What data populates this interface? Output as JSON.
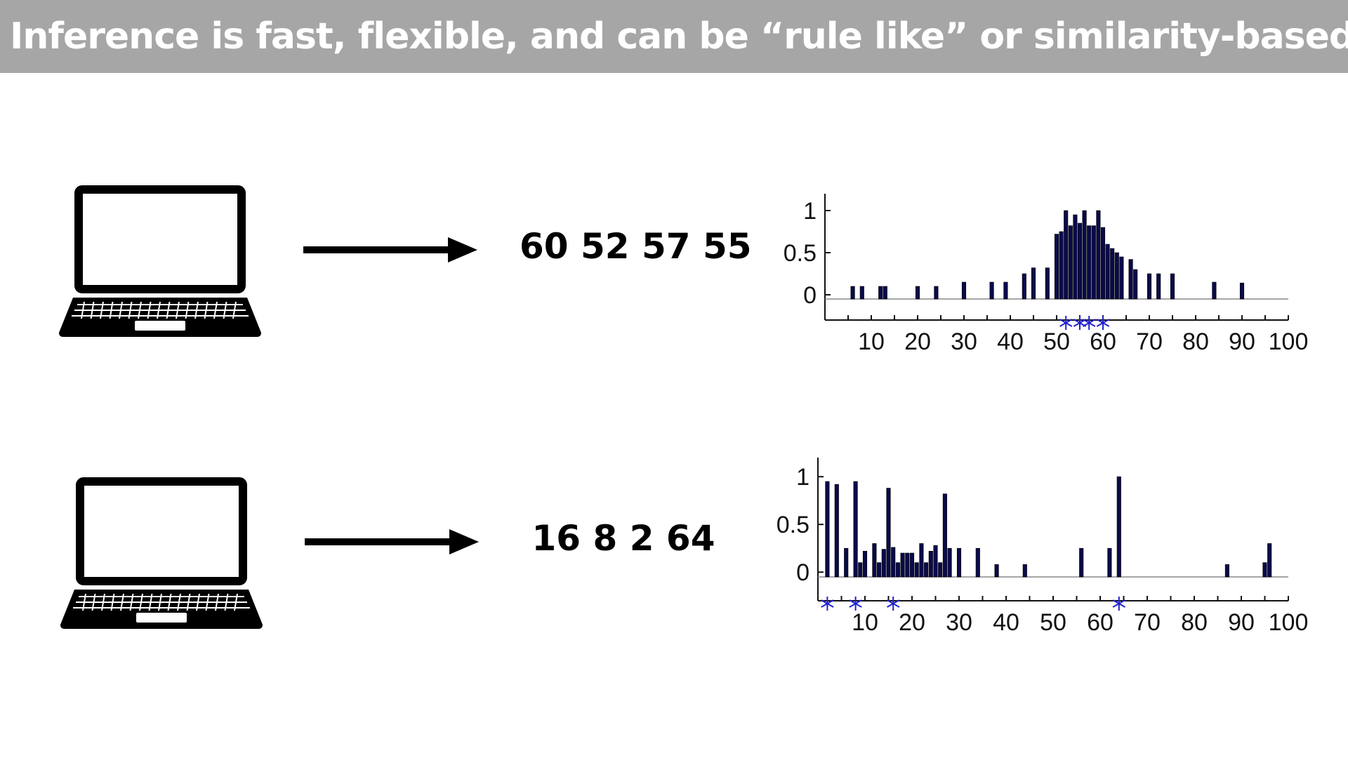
{
  "header": {
    "title": "Inference is fast, flexible, and can be “rule like” or similarity-based"
  },
  "rows": [
    {
      "sequence": "60 52 57 55"
    },
    {
      "sequence": "16 8 2 64"
    }
  ],
  "colors": {
    "title_bar": "#a6a6a6",
    "bar": "#0a0a4a",
    "star": "#2020d0"
  },
  "icons": [
    "laptop-icon",
    "arrow-right-icon"
  ],
  "chart_data": [
    {
      "type": "bar",
      "xlim": [
        0,
        100
      ],
      "ylim": [
        -0.3,
        1.2
      ],
      "xticks": [
        10,
        20,
        30,
        40,
        50,
        60,
        70,
        80,
        90,
        100
      ],
      "yticks": [
        0,
        0.5,
        1
      ],
      "xtick_labels": [
        "10",
        "20",
        "30",
        "40",
        "50",
        "60",
        "70",
        "80",
        "90",
        "100"
      ],
      "ytick_labels": [
        "0",
        "0.5",
        "1"
      ],
      "grid": false,
      "examples": [
        52,
        55,
        57,
        60
      ],
      "x": [
        6,
        8,
        12,
        13,
        20,
        24,
        30,
        36,
        39,
        43,
        45,
        48,
        50,
        51,
        52,
        53,
        54,
        55,
        56,
        57,
        58,
        59,
        60,
        61,
        62,
        63,
        64,
        66,
        67,
        70,
        72,
        75,
        84,
        90
      ],
      "values": [
        0.1,
        0.1,
        0.1,
        0.1,
        0.1,
        0.1,
        0.15,
        0.15,
        0.15,
        0.25,
        0.32,
        0.32,
        0.72,
        0.75,
        1.0,
        0.82,
        0.95,
        0.85,
        1.0,
        0.82,
        0.82,
        1.0,
        0.8,
        0.6,
        0.55,
        0.5,
        0.45,
        0.42,
        0.3,
        0.25,
        0.25,
        0.25,
        0.15,
        0.14
      ]
    },
    {
      "type": "bar",
      "xlim": [
        0,
        100
      ],
      "ylim": [
        -0.3,
        1.2
      ],
      "xticks": [
        10,
        20,
        30,
        40,
        50,
        60,
        70,
        80,
        90,
        100
      ],
      "yticks": [
        0,
        0.5,
        1
      ],
      "xtick_labels": [
        "10",
        "20",
        "30",
        "40",
        "50",
        "60",
        "70",
        "80",
        "90",
        "100"
      ],
      "ytick_labels": [
        "0",
        "0.5",
        "1"
      ],
      "grid": false,
      "examples": [
        2,
        8,
        16,
        64
      ],
      "x": [
        2,
        4,
        6,
        8,
        9,
        10,
        12,
        13,
        14,
        15,
        16,
        17,
        18,
        19,
        20,
        21,
        22,
        23,
        24,
        25,
        26,
        27,
        28,
        30,
        34,
        38,
        44,
        56,
        62,
        64,
        87,
        95,
        96
      ],
      "values": [
        0.95,
        0.92,
        0.25,
        0.95,
        0.1,
        0.22,
        0.3,
        0.1,
        0.24,
        0.88,
        0.26,
        0.1,
        0.2,
        0.2,
        0.2,
        0.1,
        0.3,
        0.1,
        0.22,
        0.28,
        0.1,
        0.82,
        0.25,
        0.25,
        0.25,
        0.08,
        0.08,
        0.25,
        0.25,
        1.0,
        0.08,
        0.1,
        0.3
      ]
    }
  ]
}
